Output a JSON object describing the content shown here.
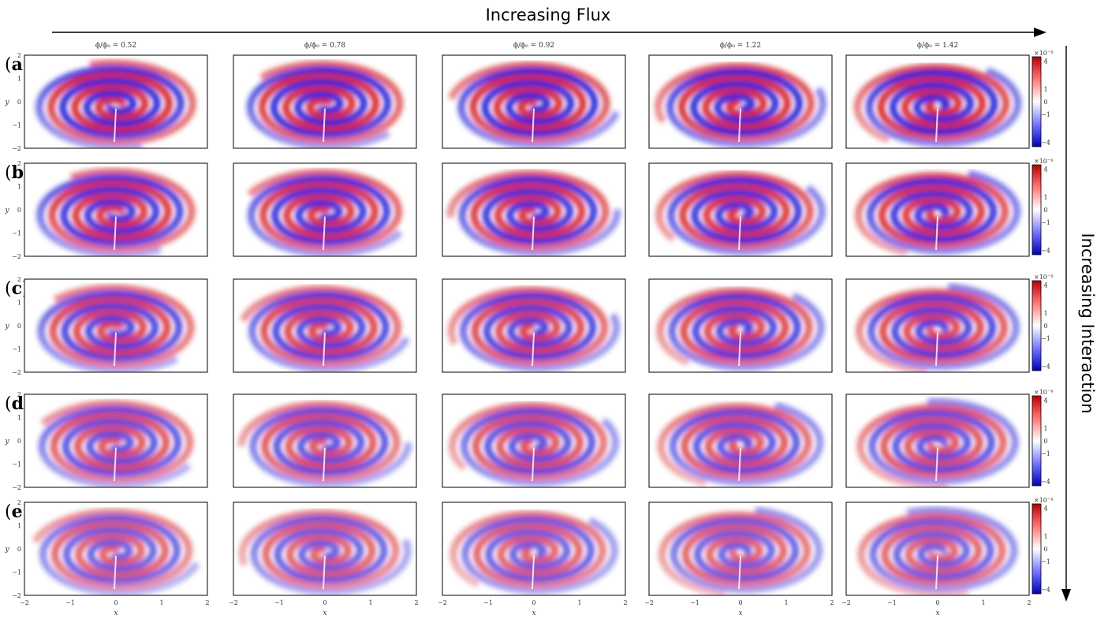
{
  "header": {
    "flux_label": "Increasing Flux",
    "interaction_label": "Increasing Interaction"
  },
  "columns": [
    {
      "title": "ϕ/ϕ₀ = 0.52"
    },
    {
      "title": "ϕ/ϕ₀ = 0.78"
    },
    {
      "title": "ϕ/ϕ₀ = 0.92"
    },
    {
      "title": "ϕ/ϕ₀ = 1.22"
    },
    {
      "title": "ϕ/ϕ₀ = 1.42"
    }
  ],
  "rows": [
    {
      "paren_open": "(",
      "letter": "a",
      "paren_close": ")"
    },
    {
      "paren_open": "(",
      "letter": "b",
      "paren_close": ")"
    },
    {
      "paren_open": "(",
      "letter": "c",
      "paren_close": ")"
    },
    {
      "paren_open": "(",
      "letter": "d",
      "paren_close": ")"
    },
    {
      "paren_open": "(",
      "letter": "e",
      "paren_close": ")"
    }
  ],
  "axes": {
    "xlabel": "x",
    "ylabel": "y",
    "x_ticks": [
      "−2",
      "−1",
      "0",
      "1",
      "2"
    ],
    "y_ticks": [
      "2",
      "1",
      "0",
      "−1",
      "−2"
    ]
  },
  "colorbar": {
    "exponent": "×10⁻⁴",
    "ticks": [
      "4",
      "1",
      "0",
      "−1",
      "−4"
    ],
    "colors": {
      "positive": "#cc0000",
      "zero": "#ffffff",
      "negative": "#0000cc"
    }
  }
}
